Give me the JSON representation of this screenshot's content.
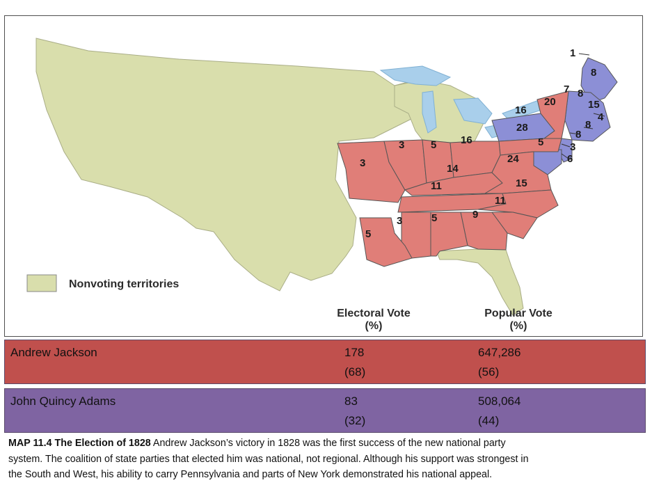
{
  "colors": {
    "jackson": "#c0504d",
    "adams": "#7f64a2",
    "state_jackson": "#e07e78",
    "state_adams": "#8c8fd6",
    "nonvoting": "#d9deac",
    "water": "#a9cfeb"
  },
  "map": {
    "legend_label": "Nonvoting territories",
    "header_electoral": "Electoral Vote",
    "header_electoral_pct": "(%)",
    "header_popular": "Popular Vote",
    "header_popular_pct": "(%)",
    "state_votes": [
      {
        "label": "1",
        "party": "adams"
      },
      {
        "label": "8",
        "party": "adams"
      },
      {
        "label": "7",
        "party": "adams"
      },
      {
        "label": "8",
        "party": "adams"
      },
      {
        "label": "15",
        "party": "adams"
      },
      {
        "label": "4",
        "party": "adams"
      },
      {
        "label": "8",
        "party": "adams"
      },
      {
        "label": "20",
        "party": "jackson"
      },
      {
        "label": "16",
        "party": "adams"
      },
      {
        "label": "8",
        "party": "adams"
      },
      {
        "label": "28",
        "party": "jackson"
      },
      {
        "label": "5",
        "party": "adams"
      },
      {
        "label": "3",
        "party": "adams"
      },
      {
        "label": "6",
        "party": "adams"
      },
      {
        "label": "3",
        "party": "jackson"
      },
      {
        "label": "3",
        "party": "jackson"
      },
      {
        "label": "5",
        "party": "jackson"
      },
      {
        "label": "16",
        "party": "jackson"
      },
      {
        "label": "14",
        "party": "jackson"
      },
      {
        "label": "24",
        "party": "jackson"
      },
      {
        "label": "11",
        "party": "jackson"
      },
      {
        "label": "15",
        "party": "jackson"
      },
      {
        "label": "11",
        "party": "jackson"
      },
      {
        "label": "5",
        "party": "jackson"
      },
      {
        "label": "3",
        "party": "jackson"
      },
      {
        "label": "5",
        "party": "jackson"
      },
      {
        "label": "9",
        "party": "jackson"
      }
    ]
  },
  "results": [
    {
      "candidate": "Andrew  Jackson",
      "electoral": "178",
      "electoral_pct": "(68)",
      "popular": "647,286",
      "popular_pct": "(56)"
    },
    {
      "candidate": "John Quincy Adams",
      "electoral": "83",
      "electoral_pct": "(32)",
      "popular": "508,064",
      "popular_pct": "(44)"
    }
  ],
  "caption": {
    "label": "MAP 11.4 The Election of 1828",
    "text": " Andrew Jackson’s victory in 1828 was the first success of the new national party system. The coalition of state parties that elected him was national, not regional. Although his support was strongest in the South and West, his ability to carry Pennsylvania and parts of New York demonstrated his national appeal."
  }
}
